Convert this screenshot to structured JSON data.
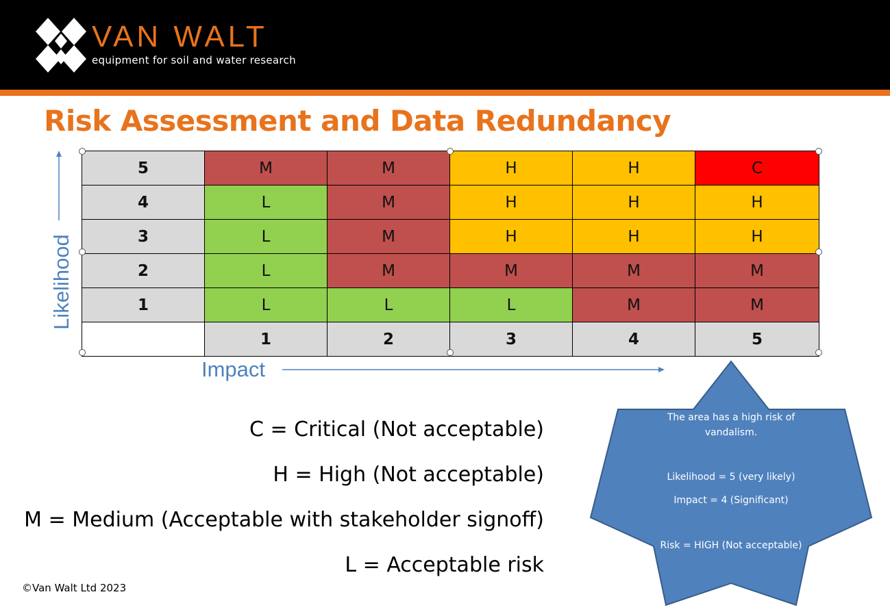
{
  "brand": {
    "name": "VAN WALT",
    "tagline": "equipment for soil and water research",
    "accent_color": "#e8731c",
    "header_color": "#000000"
  },
  "title": "Risk Assessment and Data Redundancy",
  "matrix": {
    "y_axis_label": "Likelihood",
    "x_axis_label": "Impact",
    "rows": [
      {
        "likelihood": "5",
        "cells": [
          "M",
          "M",
          "H",
          "H",
          "C"
        ]
      },
      {
        "likelihood": "4",
        "cells": [
          "L",
          "M",
          "H",
          "H",
          "H"
        ]
      },
      {
        "likelihood": "3",
        "cells": [
          "L",
          "M",
          "H",
          "H",
          "H"
        ]
      },
      {
        "likelihood": "2",
        "cells": [
          "L",
          "M",
          "M",
          "M",
          "M"
        ]
      },
      {
        "likelihood": "1",
        "cells": [
          "L",
          "L",
          "L",
          "M",
          "M"
        ]
      }
    ],
    "impact_labels": [
      "1",
      "2",
      "3",
      "4",
      "5"
    ],
    "level_colors": {
      "C": "#ff0000",
      "H": "#ffc000",
      "M": "#c0504d",
      "L": "#92d050"
    }
  },
  "legend": [
    "C = Critical (Not acceptable)",
    "H = High (Not acceptable)",
    "M = Medium (Acceptable with stakeholder signoff)",
    "L = Acceptable risk"
  ],
  "callout": {
    "line1": "The area has a high risk of vandalism.",
    "line2": "Likelihood = 5 (very likely)",
    "line3": "Impact = 4 (Significant)",
    "line4": "Risk = HIGH (Not acceptable)",
    "color": "#4f81bd"
  },
  "copyright": "©Van Walt Ltd 2023"
}
